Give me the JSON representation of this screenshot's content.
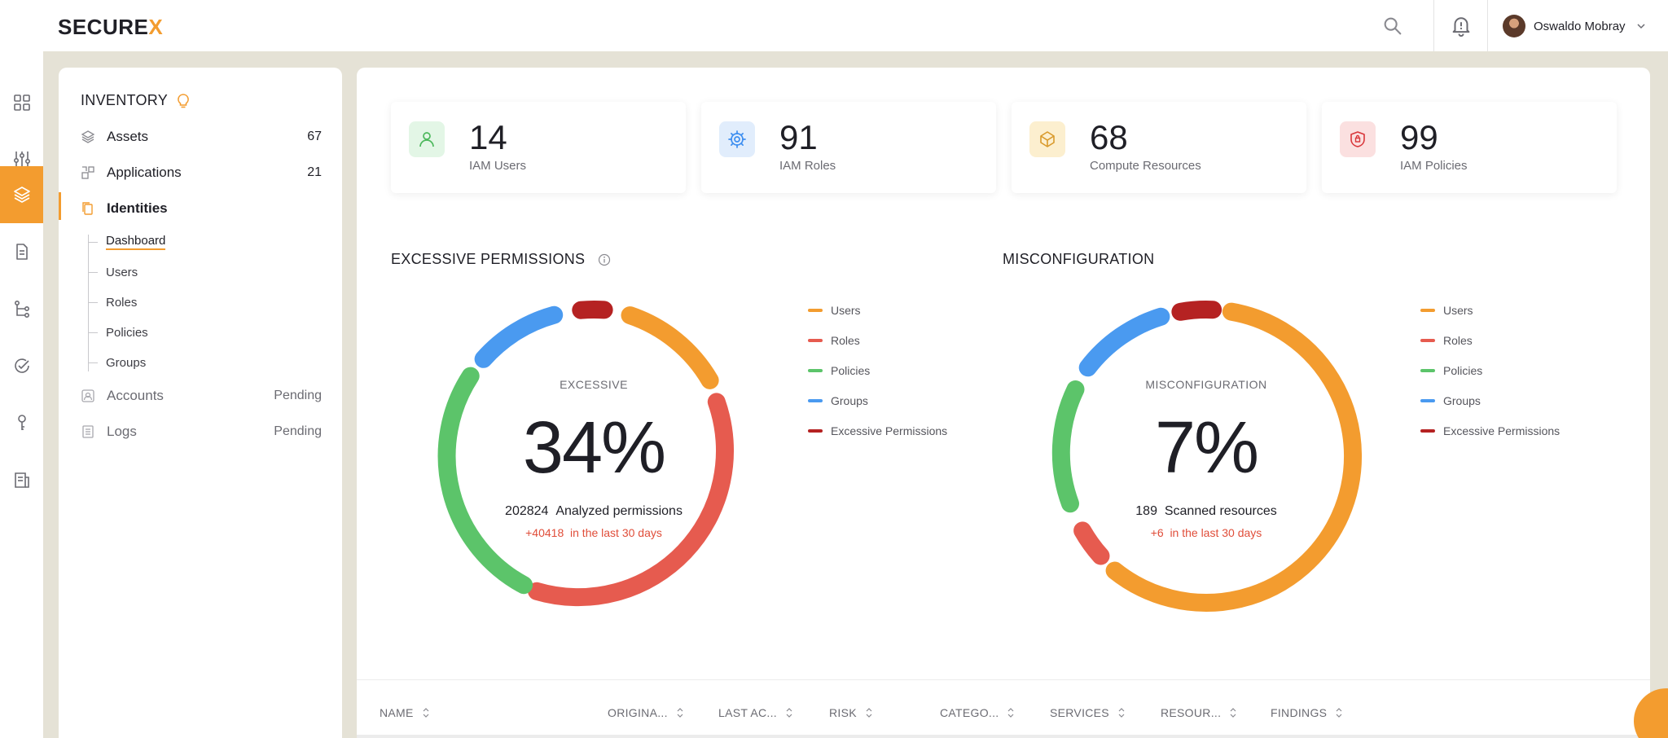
{
  "brand": {
    "name": "SECURE",
    "accent": "X"
  },
  "user": {
    "name": "Oswaldo Mobray"
  },
  "colors": {
    "accent": "#f39c2f",
    "users": "#f39c2f",
    "roles": "#e65b4f",
    "policies": "#5cc46a",
    "groups": "#4a9af0",
    "excessive": "#b52222"
  },
  "rail": [
    {
      "name": "grid-icon"
    },
    {
      "name": "sliders-icon"
    },
    {
      "name": "layers-icon"
    },
    {
      "name": "document-icon"
    },
    {
      "name": "flow-icon"
    },
    {
      "name": "check-circle-icon"
    },
    {
      "name": "key-icon"
    },
    {
      "name": "report-icon"
    }
  ],
  "inventory": {
    "title": "INVENTORY",
    "items": [
      {
        "label": "Assets",
        "count": "67"
      },
      {
        "label": "Applications",
        "count": "21"
      },
      {
        "label": "Identities",
        "count": ""
      },
      {
        "label": "Accounts",
        "count": "Pending"
      },
      {
        "label": "Logs",
        "count": "Pending"
      }
    ],
    "sub_items": [
      "Dashboard",
      "Users",
      "Roles",
      "Policies",
      "Groups"
    ]
  },
  "kpis": [
    {
      "value": "14",
      "label": "IAM Users",
      "icon": "user-icon"
    },
    {
      "value": "91",
      "label": "IAM Roles",
      "icon": "gear-icon"
    },
    {
      "value": "68",
      "label": "Compute Resources",
      "icon": "box-icon"
    },
    {
      "value": "99",
      "label": "IAM Policies",
      "icon": "shield-icon"
    }
  ],
  "excessive": {
    "title": "EXCESSIVE PERMISSIONS",
    "caption": "EXCESSIVE",
    "percent": "34%",
    "count": "202824",
    "count_label": "Analyzed permissions",
    "delta": "+40418",
    "delta_label": "in the last 30 days"
  },
  "misconfig": {
    "title": "MISCONFIGURATION",
    "caption": "MISCONFIGURATION",
    "percent": "7%",
    "count": "189",
    "count_label": "Scanned resources",
    "delta": "+6",
    "delta_label": "in the last 30 days"
  },
  "legend": [
    "Users",
    "Roles",
    "Policies",
    "Groups",
    "Excessive Permissions"
  ],
  "table": {
    "columns": [
      "NAME",
      "ORIGINA...",
      "LAST AC...",
      "RISK",
      "CATEGO...",
      "SERVICES",
      "RESOUR...",
      "FINDINGS"
    ]
  }
}
